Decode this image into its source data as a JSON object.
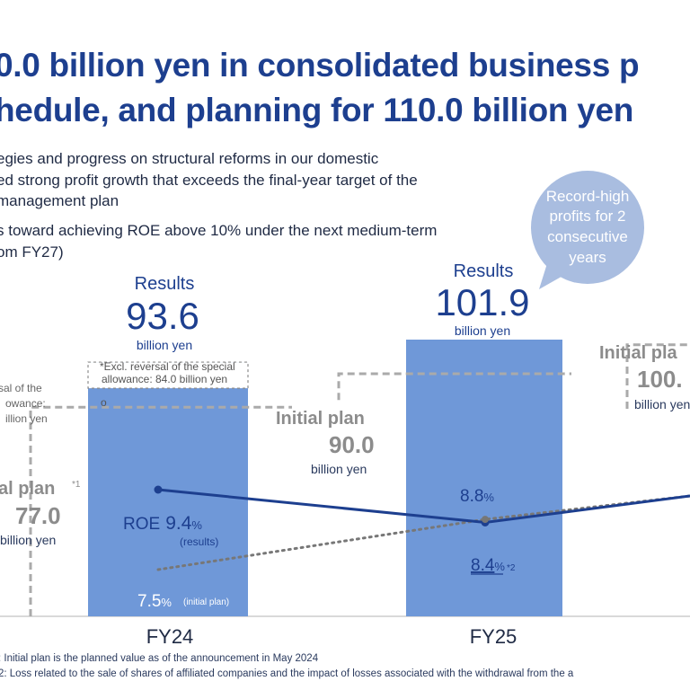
{
  "title": {
    "line1": "0.0 billion yen in consolidated business p",
    "line2": "hedule, and planning for 110.0 billion yen"
  },
  "bullets": [
    "egies and progress on structural reforms in our domestic",
    "ed strong profit growth that exceeds the final-year target of the",
    " management plan",
    "s toward achieving ROE above 10% under the next medium-term",
    "om FY27)"
  ],
  "callout": {
    "lines": [
      "Record-high",
      "profits for 2",
      "consecutive",
      "years"
    ],
    "color": "#a9bde0"
  },
  "colors": {
    "bar": "#6f98d8",
    "results_text": "#1d3f8f",
    "plan_text": "#8c8c8c",
    "plan_dash": "#aaaaaa",
    "roe_line": "#1d3f8f",
    "roe_plan_line": "#777777"
  },
  "chart_data": {
    "type": "bar",
    "categories": [
      "FY24",
      "FY25"
    ],
    "unit_label": "billion yen",
    "results": {
      "label": "Results",
      "values": [
        93.6,
        101.9
      ],
      "display": [
        "93.6",
        "101.9"
      ],
      "FY24_reversal_note": "*Excl. reversal of the special allowance: 84.0 billion yen",
      "FY24_excl_reversal": 84.0
    },
    "initial_plan": {
      "label": "Initial plan",
      "values": [
        77.0,
        90.0,
        100.0
      ],
      "display": [
        "77.0",
        "90.0",
        "100."
      ],
      "partial_labels": [
        "al plan",
        "Initial plan",
        "Initial pla"
      ],
      "footnote_marker": "*1",
      "FY23_left_note": [
        "sal of the",
        "owance:",
        "illion yen"
      ]
    },
    "roe": {
      "label": "ROE",
      "results": [
        9.4,
        8.4
      ],
      "results_display": [
        "9.4",
        "8.4"
      ],
      "results_note": "(results)",
      "results_marker": "*2",
      "initial_plan": [
        7.5,
        8.8
      ],
      "initial_plan_display": [
        "7.5",
        "8.8"
      ],
      "initial_plan_note": "(initial plan)",
      "unit": "%"
    }
  },
  "footnotes": [
    ": Initial plan is the planned value as of the announcement in May 2024",
    "2: Loss related to the sale of shares of affiliated companies and the impact of losses associated with the withdrawal from the a"
  ]
}
